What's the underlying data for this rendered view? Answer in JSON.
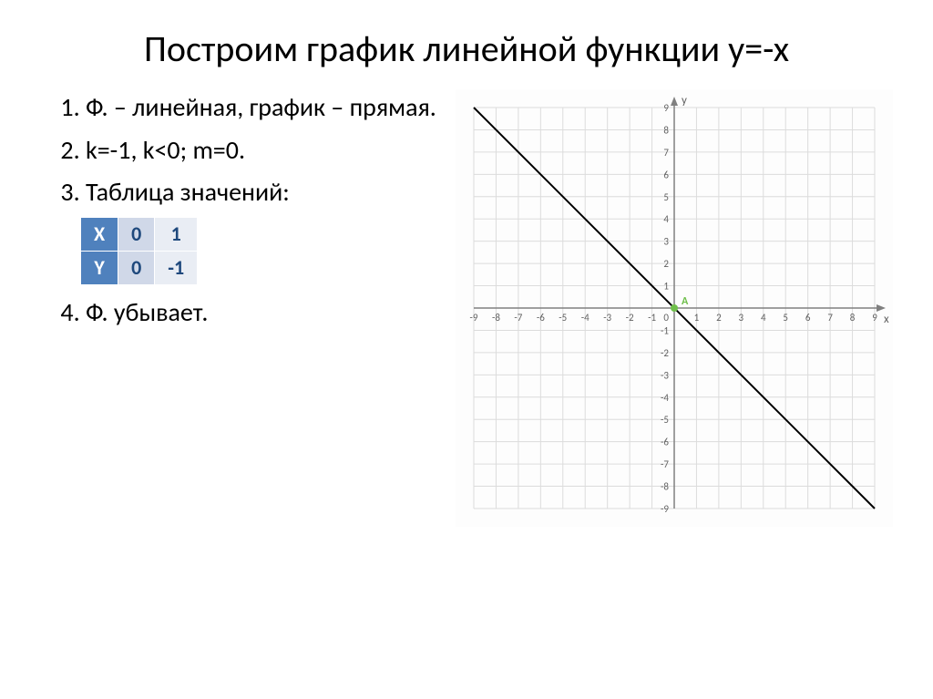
{
  "title": "Построим график линейной функции y=-x",
  "list": {
    "item1": "Ф. – линейная, график – прямая.",
    "item2": "k=-1, k<0; m=0.",
    "item3": "Таблица значений:",
    "item4": "Ф. убывает."
  },
  "table": {
    "row_x_label": "X",
    "row_y_label": "Y",
    "c1_x": "0",
    "c2_x": "1",
    "c1_y": "0",
    "c2_y": "-1"
  },
  "chart": {
    "type": "line",
    "background_color": "#fdfdfd",
    "grid_minor_color": "#f2f2f2",
    "grid_major_color": "#dcdcdc",
    "axis_color": "#808080",
    "line_color": "#000000",
    "line_width": 2,
    "point_color": "#6fbf4b",
    "label_color": "#606060",
    "label_fontsize": 11,
    "xlim": [
      -9,
      9
    ],
    "ylim": [
      -9,
      9
    ],
    "xtick_step": 1,
    "ytick_step": 1,
    "x_axis_label": "x",
    "y_axis_label": "y",
    "origin_label": "A",
    "line_points": [
      [
        -9,
        9
      ],
      [
        9,
        -9
      ]
    ],
    "marked_point": [
      0,
      0
    ]
  }
}
